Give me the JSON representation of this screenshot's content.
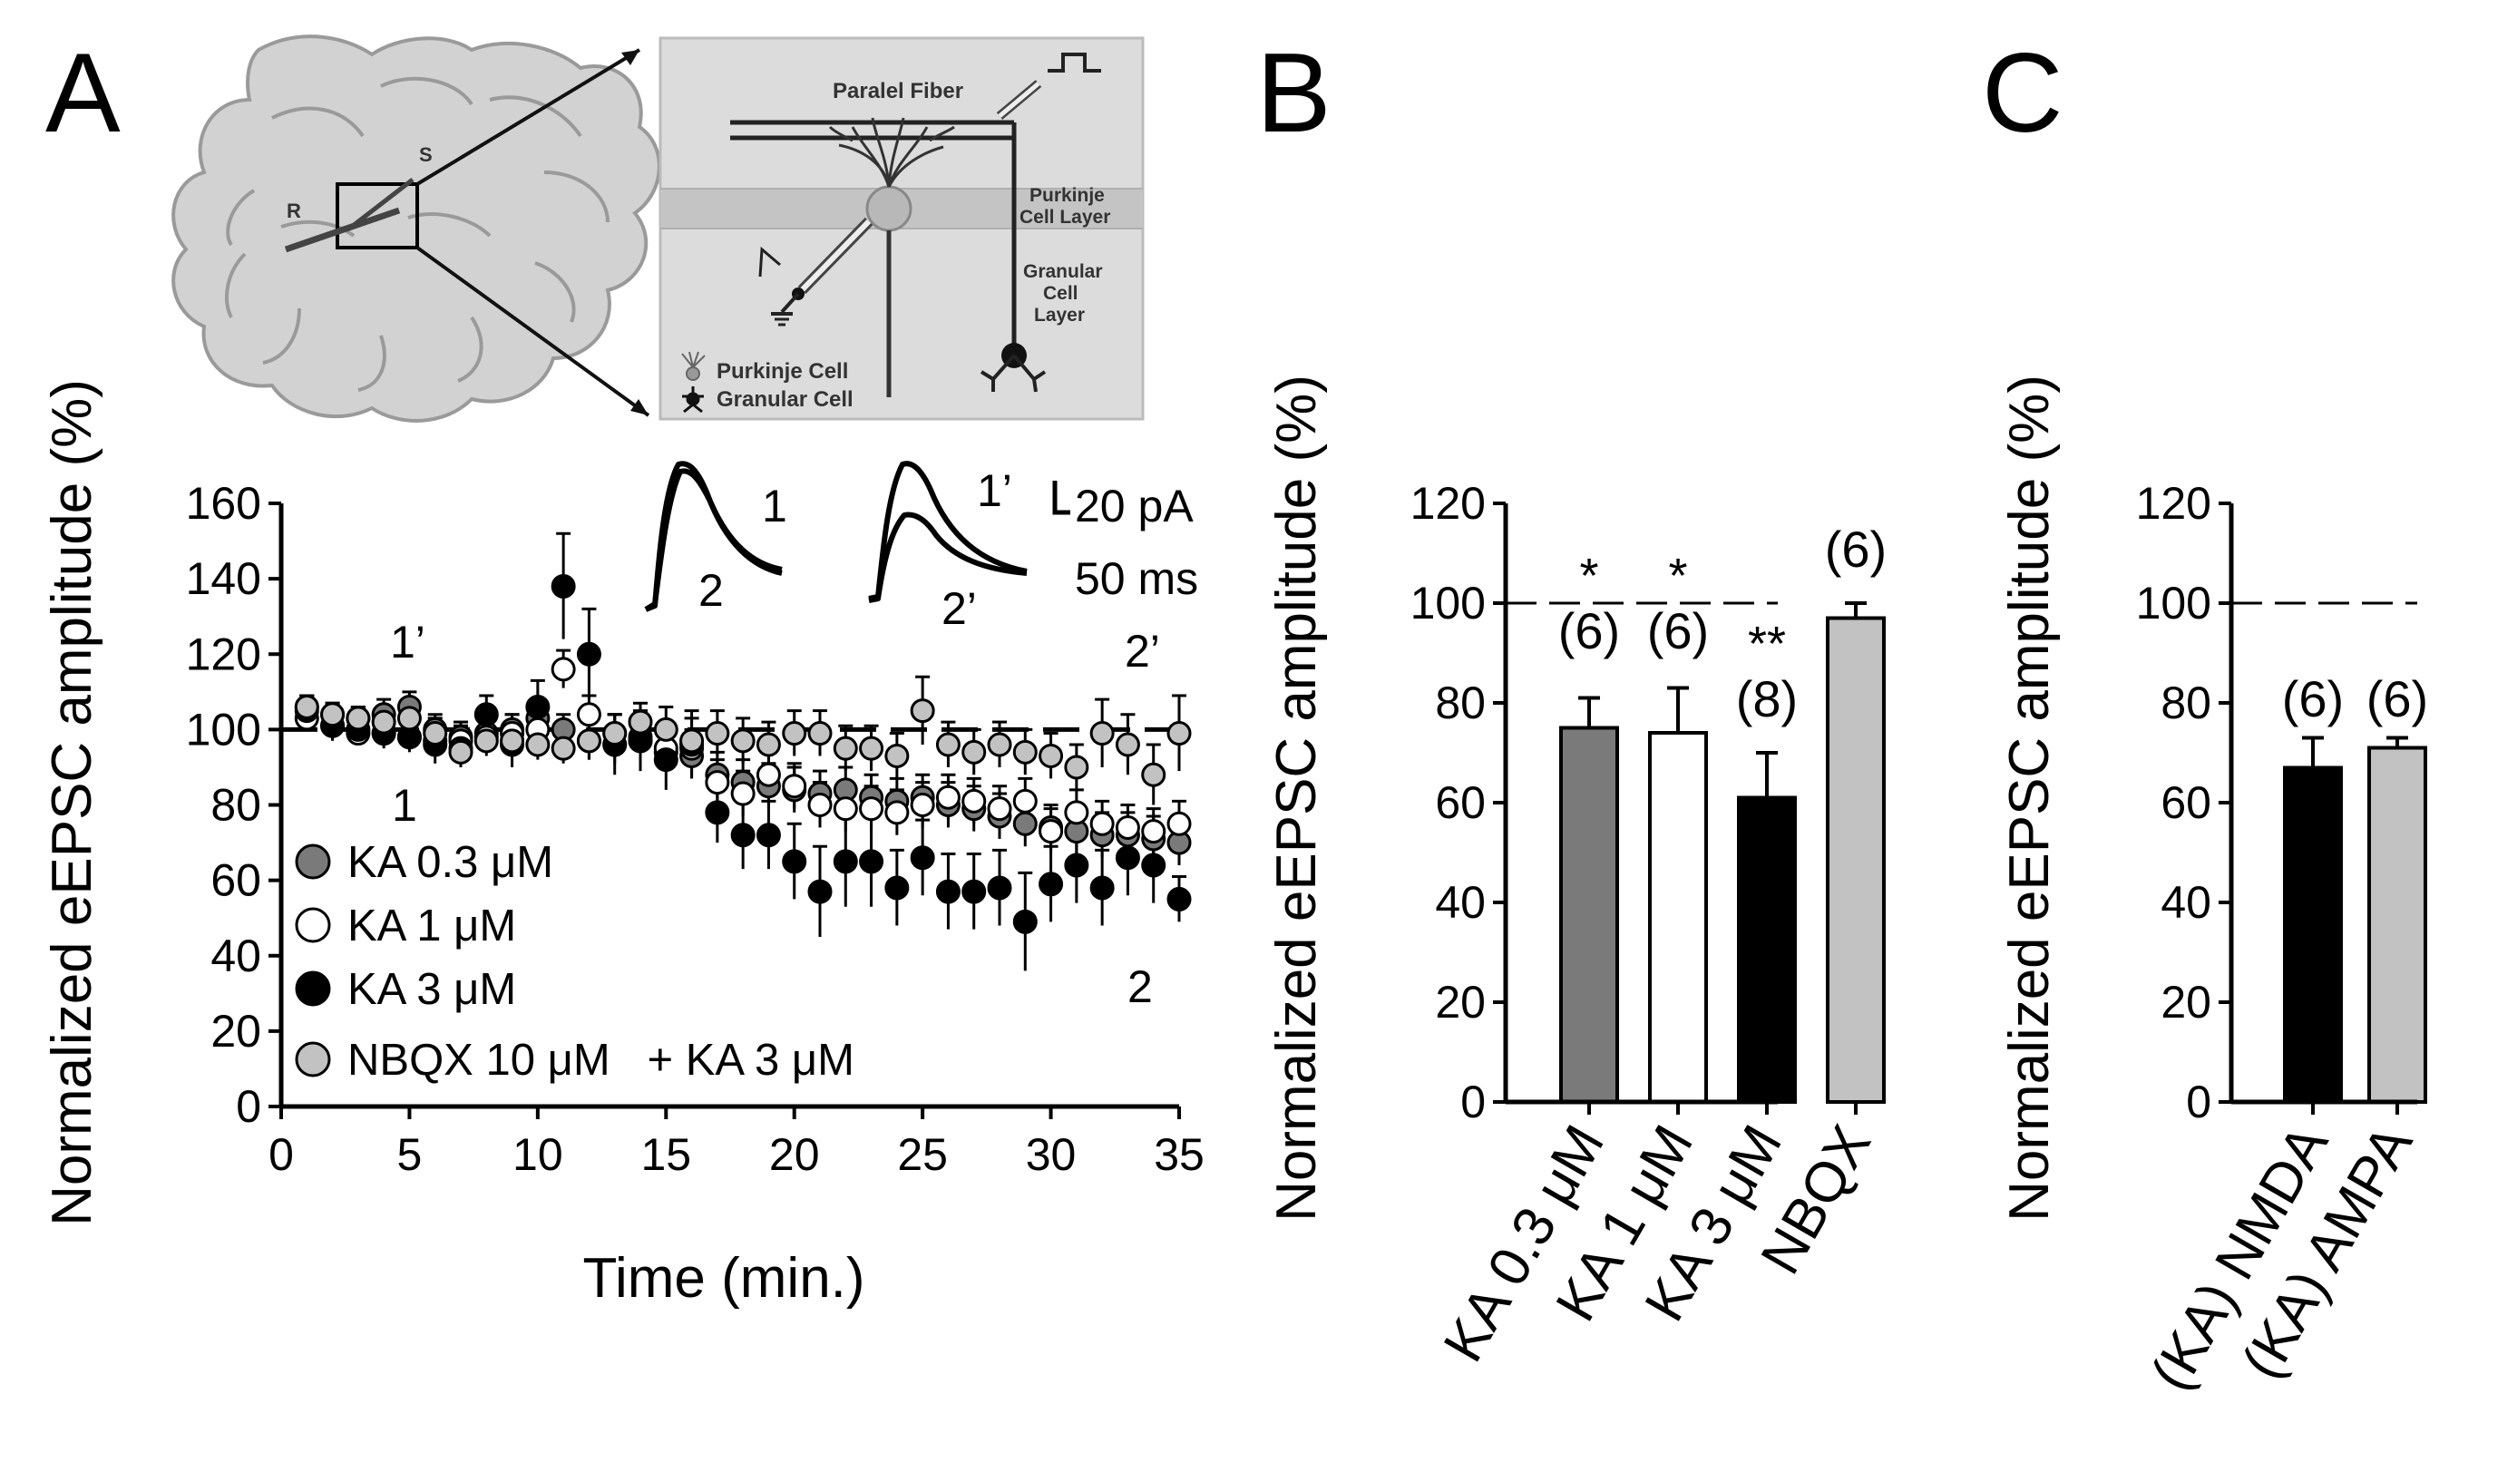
{
  "panels": {
    "a": "A",
    "b": "B",
    "c": "C"
  },
  "colors": {
    "ka03": "#7a7a7a",
    "ka1": "#ffffff",
    "ka3": "#000000",
    "nbqx": "#c2c2c2",
    "schema_bg": "#dcdcdc",
    "layer_band": "#c4c4c4"
  },
  "schematic": {
    "fiber_label": "Paralel Fiber",
    "purkinje_layer": [
      "Purkinje",
      "Cell Layer"
    ],
    "granular_layer": [
      "Granular",
      "Cell",
      "Layer"
    ],
    "legend_purkinje": "Purkinje Cell",
    "legend_granular": "Granular Cell",
    "stim_label": "S",
    "rec_label": "R"
  },
  "traces": {
    "label_1": "1",
    "label_2": "2",
    "label_1p": "1’",
    "label_2p": "2’",
    "scale_current": "20 pA",
    "scale_time": "50 ms"
  },
  "chart_data": [
    {
      "id": "A",
      "type": "scatter",
      "xlabel": "Time (min.)",
      "ylabel": "Normalized eEPSC amplitude (%)",
      "xlim": [
        0,
        35
      ],
      "ylim": [
        0,
        160
      ],
      "xticks": [
        "0",
        "5",
        "10",
        "15",
        "20",
        "25",
        "30",
        "35"
      ],
      "yticks": [
        "0",
        "20",
        "40",
        "60",
        "80",
        "100",
        "120",
        "140",
        "160"
      ],
      "reference_line": 100,
      "x": [
        1,
        2,
        3,
        4,
        5,
        6,
        7,
        8,
        9,
        10,
        11,
        12,
        13,
        14,
        15,
        16,
        17,
        18,
        19,
        20,
        21,
        22,
        23,
        24,
        25,
        26,
        27,
        28,
        29,
        30,
        31,
        32,
        33,
        34,
        35
      ],
      "series": [
        {
          "name": "KA 0.3 μM",
          "color_key": "ka03",
          "values": [
            106,
            104,
            103,
            104,
            106,
            100,
            98,
            99,
            100,
            103,
            100,
            97,
            96,
            98,
            94,
            93,
            88,
            86,
            85,
            84,
            83,
            84,
            82,
            81,
            82,
            80,
            79,
            77,
            75,
            74,
            73,
            72,
            72,
            71,
            70
          ],
          "errors": [
            3,
            3,
            3,
            4,
            4,
            4,
            4,
            4,
            4,
            4,
            4,
            5,
            5,
            5,
            5,
            6,
            6,
            6,
            6,
            6,
            6,
            6,
            6,
            6,
            6,
            6,
            6,
            6,
            6,
            6,
            6,
            6,
            6,
            6,
            6
          ]
        },
        {
          "name": "KA 1 μM",
          "color_key": "ka1",
          "values": [
            103,
            101,
            99,
            99,
            98,
            97,
            97,
            98,
            99,
            100,
            116,
            104,
            99,
            97,
            95,
            95,
            86,
            83,
            88,
            85,
            80,
            79,
            79,
            78,
            80,
            82,
            81,
            79,
            81,
            73,
            78,
            75,
            74,
            73,
            75
          ],
          "errors": [
            3,
            3,
            3,
            3,
            3,
            4,
            4,
            4,
            5,
            6,
            5,
            5,
            5,
            5,
            5,
            5,
            6,
            6,
            6,
            6,
            6,
            6,
            6,
            6,
            6,
            6,
            6,
            6,
            6,
            6,
            6,
            6,
            6,
            6,
            6
          ]
        },
        {
          "name": "KA 3 μM",
          "color_key": "ka3",
          "values": [
            105,
            101,
            100,
            99,
            98,
            96,
            95,
            104,
            96,
            106,
            138,
            120,
            96,
            97,
            92,
            96,
            78,
            72,
            72,
            65,
            57,
            65,
            65,
            58,
            66,
            57,
            57,
            58,
            49,
            59,
            64,
            58,
            66,
            64,
            55
          ],
          "errors": [
            4,
            4,
            4,
            4,
            4,
            5,
            5,
            5,
            6,
            7,
            14,
            12,
            8,
            8,
            8,
            9,
            8,
            9,
            9,
            10,
            12,
            12,
            12,
            10,
            10,
            10,
            10,
            10,
            13,
            10,
            10,
            10,
            10,
            10,
            6
          ]
        },
        {
          "name": "NBQX 10 μM   + KA 3 μM",
          "color_key": "nbqx",
          "values": [
            106,
            104,
            103,
            102,
            103,
            99,
            94,
            97,
            97,
            96,
            95,
            97,
            99,
            102,
            100,
            97,
            99,
            97,
            96,
            99,
            99,
            95,
            95,
            93,
            105,
            96,
            94,
            96,
            94,
            93,
            90,
            99,
            96,
            88,
            99
          ],
          "errors": [
            3,
            3,
            3,
            4,
            4,
            4,
            4,
            4,
            4,
            4,
            4,
            5,
            5,
            5,
            6,
            6,
            6,
            6,
            6,
            6,
            6,
            6,
            6,
            6,
            9,
            6,
            6,
            6,
            6,
            6,
            6,
            9,
            8,
            8,
            10
          ]
        }
      ],
      "annotations": [
        "1’",
        "1",
        "2’",
        "2"
      ]
    },
    {
      "id": "B",
      "type": "bar",
      "ylabel": "Normalized eEPSC amplitude (%)",
      "ylim": [
        0,
        120
      ],
      "yticks": [
        "0",
        "20",
        "40",
        "60",
        "80",
        "100",
        "120"
      ],
      "reference_line": 100,
      "categories": [
        "KA 0.3 μM",
        "KA  1 μM",
        "KA  3 μM",
        "NBQX"
      ],
      "values": [
        75,
        74,
        61,
        97
      ],
      "errors": [
        6,
        9,
        9,
        3
      ],
      "color_keys": [
        "ka03",
        "ka1",
        "ka3",
        "nbqx"
      ],
      "n_labels": [
        "(6)",
        "(6)",
        "(8)",
        "(6)"
      ],
      "significance": [
        "*",
        "*",
        "**",
        ""
      ]
    },
    {
      "id": "C",
      "type": "bar",
      "ylabel": "Normalized eEPSC amplitude (%)",
      "ylim": [
        0,
        120
      ],
      "yticks": [
        "0",
        "20",
        "40",
        "60",
        "80",
        "100",
        "120"
      ],
      "reference_line": 100,
      "categories": [
        "(KA) NMDA",
        "(KA) AMPA"
      ],
      "values": [
        67,
        71
      ],
      "errors": [
        6,
        2
      ],
      "color_keys": [
        "ka3",
        "nbqx"
      ],
      "n_labels": [
        "(6)",
        "(6)"
      ]
    }
  ]
}
